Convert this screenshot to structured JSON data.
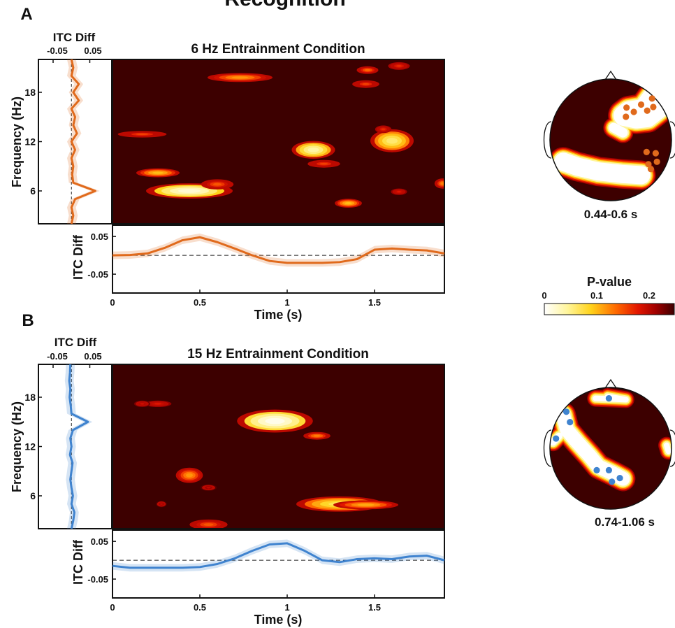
{
  "figure": {
    "title": "Recognition"
  },
  "colorbar": {
    "title": "P-value",
    "ticks": [
      "0",
      "0.1",
      "0.2"
    ]
  },
  "colors": {
    "heatmap_background": "#3d0000",
    "orange_series": "#e06a1c",
    "blue_series": "#3f83cf",
    "orange_electrode": "#e06a1c",
    "blue_electrode": "#3f83cf"
  },
  "chart_data": [
    {
      "panel": "A",
      "type": "heatmap",
      "title": "6 Hz Entrainment Condition",
      "xlabel": "Time (s)",
      "ylabel": "Frequency (Hz)",
      "xlim": [
        0,
        1.9
      ],
      "ylim": [
        2,
        22
      ],
      "xticks": [
        "0",
        "0.5",
        "1",
        "1.5"
      ],
      "yticks": [
        "6",
        "12",
        "18"
      ],
      "value_label": "P-value",
      "clim": [
        0,
        0.25
      ],
      "clusters": [
        {
          "t": 0.44,
          "f": 6,
          "dt": 0.16,
          "df": 0.6,
          "p": 0.02
        },
        {
          "t": 0.6,
          "f": 6.8,
          "dt": 0.06,
          "df": 0.4,
          "p": 0.15
        },
        {
          "t": 0.26,
          "f": 8.2,
          "dt": 0.08,
          "df": 0.35,
          "p": 0.1
        },
        {
          "t": 0.17,
          "f": 12.9,
          "dt": 0.09,
          "df": 0.25,
          "p": 0.16
        },
        {
          "t": 0.73,
          "f": 19.8,
          "dt": 0.12,
          "df": 0.35,
          "p": 0.12
        },
        {
          "t": 1.15,
          "f": 11.0,
          "dt": 0.08,
          "df": 0.7,
          "p": 0.04
        },
        {
          "t": 1.21,
          "f": 9.3,
          "dt": 0.06,
          "df": 0.3,
          "p": 0.16
        },
        {
          "t": 1.35,
          "f": 4.5,
          "dt": 0.05,
          "df": 0.35,
          "p": 0.1
        },
        {
          "t": 1.6,
          "f": 12.1,
          "dt": 0.08,
          "df": 0.9,
          "p": 0.06
        },
        {
          "t": 1.45,
          "f": 19.0,
          "dt": 0.05,
          "df": 0.3,
          "p": 0.16
        },
        {
          "t": 1.46,
          "f": 20.7,
          "dt": 0.04,
          "df": 0.3,
          "p": 0.14
        },
        {
          "t": 1.64,
          "f": 21.2,
          "dt": 0.04,
          "df": 0.3,
          "p": 0.17
        },
        {
          "t": 1.55,
          "f": 13.5,
          "dt": 0.03,
          "df": 0.3,
          "p": 0.17
        },
        {
          "t": 1.89,
          "f": 6.9,
          "dt": 0.03,
          "df": 0.4,
          "p": 0.13
        },
        {
          "t": 1.64,
          "f": 5.9,
          "dt": 0.03,
          "df": 0.2,
          "p": 0.18
        }
      ],
      "freq_itc": {
        "xlabel": "ITC Diff",
        "xticks": [
          "-0.05",
          "0.05"
        ],
        "xlim": [
          -0.09,
          0.11
        ],
        "freq": [
          2,
          3,
          4,
          5,
          6,
          7,
          8,
          9,
          10,
          11,
          12,
          13,
          14,
          15,
          16,
          17,
          18,
          19,
          20,
          21,
          22
        ],
        "itc": [
          0.0,
          0.005,
          0.0,
          0.01,
          0.065,
          0.005,
          0.002,
          0.005,
          0.0,
          0.01,
          0.0,
          0.015,
          0.005,
          0.01,
          0.0,
          0.02,
          0.005,
          0.02,
          0.0,
          0.005,
          0.0
        ],
        "err": 0.012
      },
      "time_itc": {
        "ylabel": "ITC Diff",
        "yticks": [
          "0.05",
          "-0.05"
        ],
        "ylim": [
          -0.1,
          0.08
        ],
        "time": [
          0,
          0.1,
          0.2,
          0.3,
          0.4,
          0.5,
          0.6,
          0.7,
          0.8,
          0.9,
          1.0,
          1.1,
          1.2,
          1.3,
          1.4,
          1.5,
          1.6,
          1.7,
          1.8,
          1.9
        ],
        "itc": [
          0.0,
          0.001,
          0.005,
          0.02,
          0.04,
          0.048,
          0.035,
          0.018,
          0.0,
          -0.015,
          -0.02,
          -0.02,
          -0.02,
          -0.018,
          -0.01,
          0.015,
          0.018,
          0.015,
          0.013,
          0.005
        ],
        "err": 0.01
      },
      "topomap": {
        "label": "0.44-0.6 s",
        "electrodes": [
          [
            0.68,
            -0.68
          ],
          [
            0.26,
            -0.53
          ],
          [
            0.5,
            -0.58
          ],
          [
            0.38,
            -0.46
          ],
          [
            0.25,
            -0.38
          ],
          [
            0.6,
            -0.48
          ],
          [
            0.7,
            -0.54
          ],
          [
            0.62,
            0.4
          ],
          [
            0.66,
            0.48
          ],
          [
            0.76,
            0.36
          ],
          [
            0.74,
            0.22
          ],
          [
            0.59,
            0.2
          ]
        ]
      }
    },
    {
      "panel": "B",
      "type": "heatmap",
      "title": "15 Hz Entrainment Condition",
      "xlabel": "Time (s)",
      "ylabel": "Frequency (Hz)",
      "xlim": [
        0,
        1.9
      ],
      "ylim": [
        2,
        22
      ],
      "xticks": [
        "0",
        "0.5",
        "1",
        "1.5"
      ],
      "yticks": [
        "6",
        "12",
        "18"
      ],
      "value_label": "P-value",
      "clim": [
        0,
        0.25
      ],
      "clusters": [
        {
          "t": 0.93,
          "f": 15.1,
          "dt": 0.14,
          "df": 0.9,
          "p": 0.01
        },
        {
          "t": 1.17,
          "f": 13.3,
          "dt": 0.05,
          "df": 0.3,
          "p": 0.13
        },
        {
          "t": 0.44,
          "f": 8.5,
          "dt": 0.05,
          "df": 0.6,
          "p": 0.12
        },
        {
          "t": 0.26,
          "f": 17.2,
          "dt": 0.05,
          "df": 0.15,
          "p": 0.18
        },
        {
          "t": 0.17,
          "f": 17.2,
          "dt": 0.03,
          "df": 0.15,
          "p": 0.19
        },
        {
          "t": 1.3,
          "f": 5.0,
          "dt": 0.16,
          "df": 0.6,
          "p": 0.07
        },
        {
          "t": 1.45,
          "f": 4.9,
          "dt": 0.12,
          "df": 0.35,
          "p": 0.11
        },
        {
          "t": 0.55,
          "f": 2.5,
          "dt": 0.07,
          "df": 0.4,
          "p": 0.15
        },
        {
          "t": 0.28,
          "f": 5.0,
          "dt": 0.02,
          "df": 0.15,
          "p": 0.2
        },
        {
          "t": 0.55,
          "f": 7.0,
          "dt": 0.03,
          "df": 0.2,
          "p": 0.2
        }
      ],
      "freq_itc": {
        "xlabel": "ITC Diff",
        "xticks": [
          "-0.05",
          "0.05"
        ],
        "xlim": [
          -0.09,
          0.11
        ],
        "freq": [
          2,
          3,
          4,
          5,
          6,
          7,
          8,
          9,
          10,
          11,
          12,
          13,
          14,
          15,
          16,
          17,
          18,
          19,
          20,
          21,
          22
        ],
        "itc": [
          0.0,
          0.005,
          0.008,
          0.0,
          0.004,
          0.0,
          -0.003,
          0.0,
          0.003,
          -0.004,
          0.0,
          -0.003,
          0.004,
          0.045,
          0.0,
          -0.002,
          -0.005,
          -0.003,
          -0.006,
          -0.004,
          -0.003
        ],
        "err": 0.012
      },
      "time_itc": {
        "ylabel": "ITC Diff",
        "yticks": [
          "0.05",
          "-0.05"
        ],
        "ylim": [
          -0.1,
          0.08
        ],
        "time": [
          0,
          0.1,
          0.2,
          0.3,
          0.4,
          0.5,
          0.6,
          0.7,
          0.8,
          0.9,
          1.0,
          1.1,
          1.2,
          1.3,
          1.4,
          1.5,
          1.6,
          1.7,
          1.8,
          1.9
        ],
        "itc": [
          -0.015,
          -0.02,
          -0.02,
          -0.02,
          -0.02,
          -0.018,
          -0.01,
          0.005,
          0.025,
          0.042,
          0.045,
          0.025,
          0.0,
          -0.005,
          0.003,
          0.005,
          0.003,
          0.01,
          0.012,
          0.0
        ],
        "err": 0.01
      },
      "topomap": {
        "label": "0.74-1.06 s",
        "electrodes": [
          [
            -0.03,
            -0.82
          ],
          [
            -0.73,
            -0.6
          ],
          [
            -0.67,
            -0.43
          ],
          [
            -0.9,
            -0.16
          ],
          [
            -0.23,
            0.36
          ],
          [
            -0.03,
            0.36
          ],
          [
            0.15,
            0.49
          ],
          [
            0.02,
            0.55
          ]
        ]
      }
    }
  ]
}
